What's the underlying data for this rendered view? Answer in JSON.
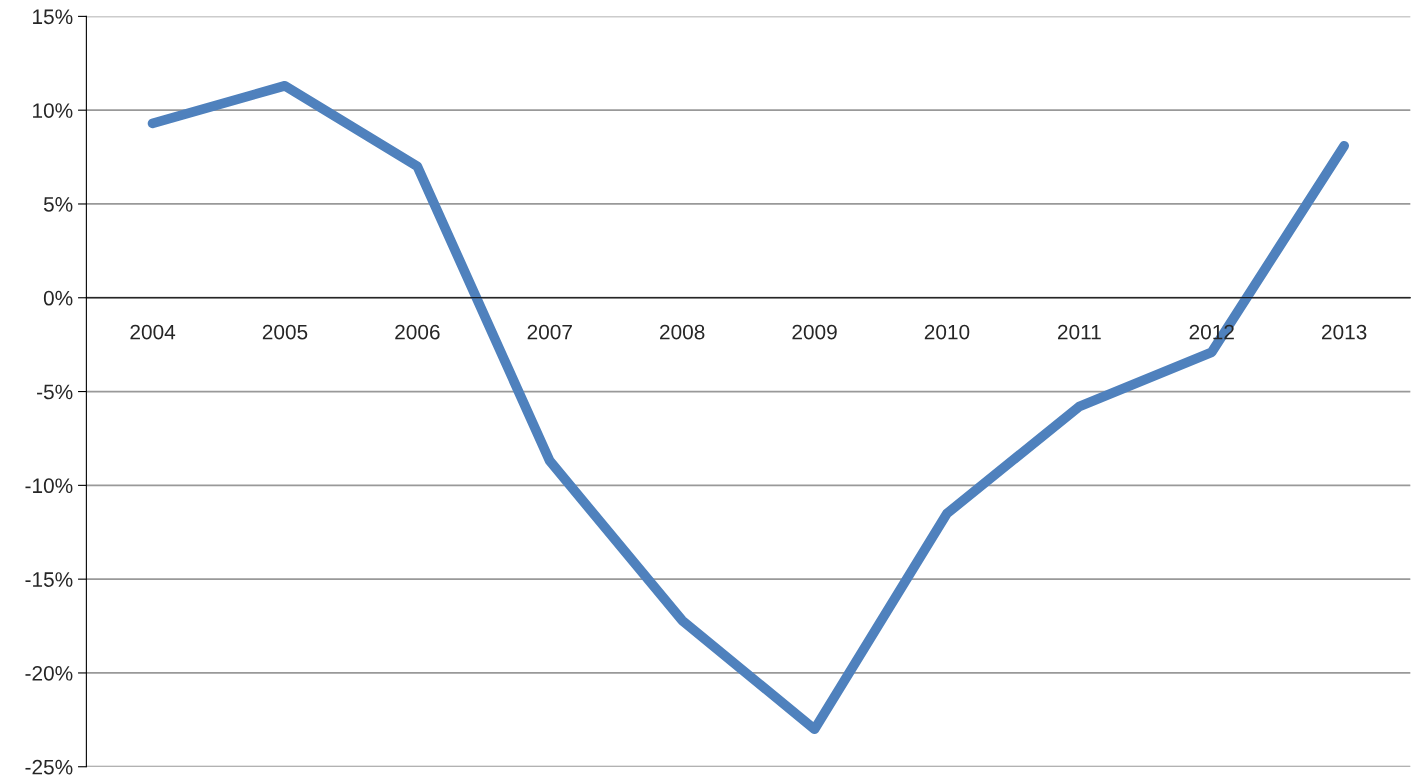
{
  "chart_data": {
    "type": "line",
    "categories": [
      "2004",
      "2005",
      "2006",
      "2007",
      "2008",
      "2009",
      "2010",
      "2011",
      "2012",
      "2013"
    ],
    "series": [
      {
        "color": "#4f81bd",
        "values": [
          9.3,
          11.3,
          7.0,
          -8.7,
          -17.2,
          -23.0,
          -11.5,
          -5.8,
          -2.9,
          8.1
        ]
      }
    ],
    "ylim": [
      -25,
      15
    ],
    "yticks": [
      {
        "value": -25,
        "label": "-25%"
      },
      {
        "value": -20,
        "label": "-20%"
      },
      {
        "value": -15,
        "label": "-15%"
      },
      {
        "value": -10,
        "label": "-10%"
      },
      {
        "value": -5,
        "label": "-5%"
      },
      {
        "value": 0,
        "label": "0%"
      },
      {
        "value": 5,
        "label": "5%"
      },
      {
        "value": 10,
        "label": "10%"
      },
      {
        "value": 15,
        "label": "15%"
      }
    ],
    "grid": "y",
    "marker": "none",
    "line_style": "solid",
    "legend": false
  }
}
